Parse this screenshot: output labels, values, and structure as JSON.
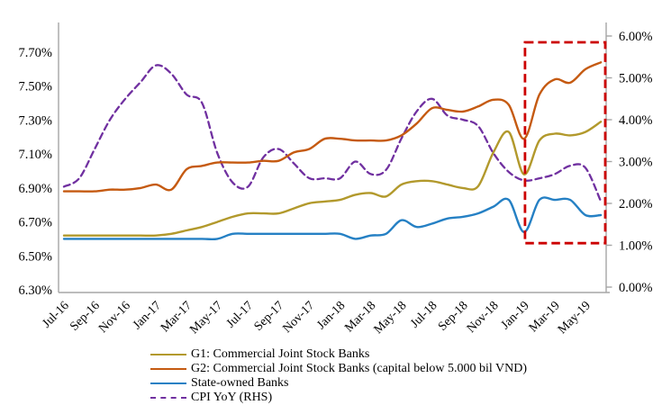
{
  "figure": {
    "background": "#FFFFFF",
    "axis_line_color": "#A6A6A6",
    "text_color": "#000000"
  },
  "chart_data": {
    "type": "line",
    "title": "",
    "xlabel": "",
    "ylabel_left": "",
    "ylabel_right": "",
    "grid": false,
    "legend_position": "bottom-left",
    "x": [
      "Jul-16",
      "Aug-16",
      "Sep-16",
      "Oct-16",
      "Nov-16",
      "Dec-16",
      "Jan-17",
      "Feb-17",
      "Mar-17",
      "Apr-17",
      "May-17",
      "Jun-17",
      "Jul-17",
      "Aug-17",
      "Sep-17",
      "Oct-17",
      "Nov-17",
      "Dec-17",
      "Jan-18",
      "Feb-18",
      "Mar-18",
      "Apr-18",
      "May-18",
      "Jun-18",
      "Jul-18",
      "Aug-18",
      "Sep-18",
      "Oct-18",
      "Nov-18",
      "Dec-18",
      "Jan-19",
      "Feb-19",
      "Mar-19",
      "Apr-19",
      "May-19",
      "Jun-19"
    ],
    "x_tick_labels": [
      "Jul-16",
      "Sep-16",
      "Nov-16",
      "Jan-17",
      "Mar-17",
      "May-17",
      "Jul-17",
      "Sep-17",
      "Nov-17",
      "Jan-18",
      "Mar-18",
      "May-18",
      "Jul-18",
      "Sep-18",
      "Nov-18",
      "Jan-19",
      "Mar-19",
      "May-19"
    ],
    "left_axis": {
      "min": 6.3,
      "max": 7.7,
      "step": 0.2,
      "ticks": [
        "6.30%",
        "6.50%",
        "6.70%",
        "6.90%",
        "7.10%",
        "7.30%",
        "7.50%",
        "7.70%"
      ]
    },
    "right_axis": {
      "min": 0.0,
      "max": 6.0,
      "step": 1.0,
      "ticks": [
        "0.00%",
        "1.00%",
        "2.00%",
        "3.00%",
        "4.00%",
        "5.00%",
        "6.00%"
      ]
    },
    "series": [
      {
        "name": "G1: Commercial Joint Stock Banks",
        "axis": "left",
        "color": "#B2992C",
        "style": "solid",
        "values": [
          6.62,
          6.62,
          6.62,
          6.62,
          6.62,
          6.62,
          6.62,
          6.63,
          6.65,
          6.67,
          6.7,
          6.73,
          6.75,
          6.75,
          6.75,
          6.78,
          6.81,
          6.82,
          6.83,
          6.86,
          6.87,
          6.85,
          6.92,
          6.94,
          6.94,
          6.92,
          6.9,
          6.91,
          7.11,
          7.23,
          6.98,
          7.18,
          7.22,
          7.21,
          7.23,
          7.29
        ]
      },
      {
        "name": "G2: Commercial Joint Stock Banks (capital below 5.000 bil VND)",
        "axis": "left",
        "color": "#C55A11",
        "style": "solid",
        "values": [
          6.88,
          6.88,
          6.88,
          6.89,
          6.89,
          6.9,
          6.92,
          6.89,
          7.01,
          7.03,
          7.05,
          7.05,
          7.05,
          7.06,
          7.06,
          7.11,
          7.13,
          7.19,
          7.19,
          7.18,
          7.18,
          7.18,
          7.21,
          7.28,
          7.37,
          7.36,
          7.35,
          7.38,
          7.42,
          7.39,
          7.19,
          7.45,
          7.54,
          7.52,
          7.6,
          7.64
        ]
      },
      {
        "name": "State-owned Banks",
        "axis": "left",
        "color": "#2580C4",
        "style": "solid",
        "values": [
          6.6,
          6.6,
          6.6,
          6.6,
          6.6,
          6.6,
          6.6,
          6.6,
          6.6,
          6.6,
          6.6,
          6.63,
          6.63,
          6.63,
          6.63,
          6.63,
          6.63,
          6.63,
          6.63,
          6.6,
          6.62,
          6.63,
          6.71,
          6.67,
          6.69,
          6.72,
          6.73,
          6.75,
          6.79,
          6.83,
          6.64,
          6.83,
          6.83,
          6.83,
          6.74,
          6.74
        ]
      },
      {
        "name": "CPI YoY  (RHS)",
        "axis": "right",
        "color": "#7030A0",
        "style": "dashed",
        "values": [
          2.4,
          2.6,
          3.3,
          4.0,
          4.5,
          4.9,
          5.3,
          5.1,
          4.6,
          4.4,
          3.2,
          2.5,
          2.4,
          3.1,
          3.3,
          2.95,
          2.6,
          2.6,
          2.6,
          3.0,
          2.7,
          2.8,
          3.55,
          4.2,
          4.5,
          4.1,
          4.0,
          3.85,
          3.2,
          2.75,
          2.55,
          2.6,
          2.7,
          2.9,
          2.85,
          2.05
        ]
      }
    ],
    "annotation_box": {
      "description": "red dashed highlight of Jan-19 onward",
      "color": "#CC0000",
      "x_start_label": "Jan-19",
      "x_start_index": 30,
      "rhs_top": 5.85,
      "rhs_bottom": 1.05
    }
  }
}
